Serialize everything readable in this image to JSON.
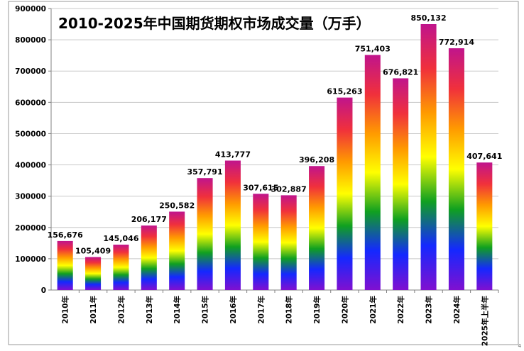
{
  "chart_data": {
    "type": "bar",
    "title": "2010-2025年中国期货期权市场成交量（万手）",
    "categories": [
      "2010年",
      "2011年",
      "2012年",
      "2013年",
      "2014年",
      "2015年",
      "2016年",
      "2017年",
      "2018年",
      "2019年",
      "2020年",
      "2021年",
      "2022年",
      "2023年",
      "2024年",
      "2025年上半年"
    ],
    "values": [
      156676,
      105409,
      145046,
      206177,
      250582,
      357791,
      413777,
      307615,
      302887,
      396208,
      615263,
      751403,
      676821,
      850132,
      772914,
      407641
    ],
    "value_labels": [
      "156,676",
      "105,409",
      "145,046",
      "206,177",
      "250,582",
      "357,791",
      "413,777",
      "307,615",
      "302,887",
      "396,208",
      "615,263",
      "751,403",
      "676,821",
      "850,132",
      "772,914",
      "407,641"
    ],
    "ylim": [
      0,
      900000
    ],
    "yticks": [
      0,
      100000,
      200000,
      300000,
      400000,
      500000,
      600000,
      700000,
      800000,
      900000
    ],
    "ytick_labels": [
      "0",
      "100000",
      "200000",
      "300000",
      "400000",
      "500000",
      "600000",
      "700000",
      "800000",
      "900000"
    ],
    "grid": true,
    "bar_fill": "rainbow-gradient",
    "colors": {
      "gradient_stops": [
        "#c0148c",
        "#f0303c",
        "#ff9a00",
        "#ffff00",
        "#10a020",
        "#1428ff",
        "#8010d0"
      ]
    }
  },
  "page": {
    "corner_mark": "4"
  }
}
